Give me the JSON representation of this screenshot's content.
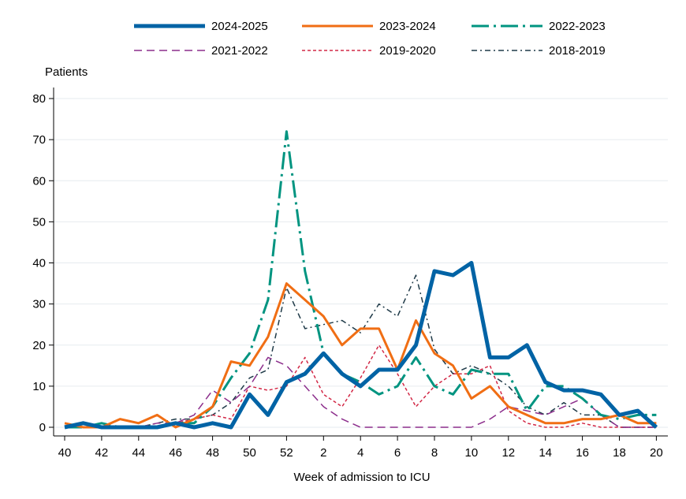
{
  "chart_data": {
    "type": "line",
    "title": "",
    "ylabel": "Patients",
    "xlabel": "Week of admission to ICU",
    "ylim": [
      0,
      80
    ],
    "yticks": [
      0,
      10,
      20,
      30,
      40,
      50,
      60,
      70,
      80
    ],
    "x": [
      40,
      41,
      42,
      43,
      44,
      45,
      46,
      47,
      48,
      49,
      50,
      51,
      52,
      1,
      2,
      3,
      4,
      5,
      6,
      7,
      8,
      9,
      10,
      11,
      12,
      13,
      14,
      15,
      16,
      17,
      18,
      19,
      20
    ],
    "xtick_labels": [
      "40",
      "42",
      "44",
      "46",
      "48",
      "50",
      "52",
      "2",
      "4",
      "6",
      "8",
      "10",
      "12",
      "14",
      "16",
      "18",
      "20"
    ],
    "grid": true,
    "legend_position": "top",
    "series": [
      {
        "name": "2024-2025",
        "color": "#0063a5",
        "style": "solid-thick",
        "values": [
          0,
          1,
          0,
          0,
          0,
          0,
          1,
          0,
          1,
          0,
          8,
          3,
          11,
          13,
          18,
          13,
          10,
          14,
          14,
          20,
          38,
          37,
          40,
          17,
          17,
          20,
          11,
          9,
          9,
          8,
          3,
          4,
          0
        ]
      },
      {
        "name": "2023-2024",
        "color": "#f06e14",
        "style": "solid",
        "values": [
          1,
          0,
          0,
          2,
          1,
          3,
          0,
          2,
          5,
          16,
          15,
          22,
          35,
          31,
          27,
          20,
          24,
          24,
          14,
          26,
          18,
          15,
          7,
          10,
          5,
          3,
          1,
          1,
          2,
          2,
          3,
          1,
          1
        ]
      },
      {
        "name": "2022-2023",
        "color": "#009480",
        "style": "dash-dot-long",
        "values": [
          0,
          0,
          1,
          0,
          0,
          0,
          1,
          1,
          5,
          12,
          18,
          31,
          72,
          38,
          18,
          13,
          11,
          8,
          10,
          17,
          10,
          8,
          14,
          13,
          13,
          4,
          10,
          10,
          7,
          3,
          2,
          3,
          3
        ]
      },
      {
        "name": "2021-2022",
        "color": "#8c2e8c",
        "style": "dashed",
        "values": [
          0,
          0,
          0,
          0,
          0,
          1,
          1,
          3,
          9,
          6,
          10,
          17,
          15,
          10,
          5,
          2,
          0,
          0,
          0,
          0,
          0,
          0,
          0,
          2,
          5,
          4,
          3,
          5,
          7,
          3,
          0,
          0,
          0
        ]
      },
      {
        "name": "2019-2020",
        "color": "#d22846",
        "style": "dotted",
        "values": [
          0,
          0,
          0,
          0,
          0,
          0,
          1,
          2,
          3,
          2,
          10,
          9,
          10,
          17,
          8,
          5,
          12,
          20,
          13,
          5,
          10,
          13,
          13,
          15,
          4,
          1,
          0,
          0,
          1,
          0,
          0,
          0,
          0
        ]
      },
      {
        "name": "2018-2019",
        "color": "#1f3a48",
        "style": "dash-dot",
        "values": [
          0,
          0,
          0,
          0,
          0,
          1,
          2,
          2,
          3,
          6,
          12,
          14,
          34,
          24,
          25,
          26,
          23,
          30,
          27,
          37,
          19,
          13,
          15,
          13,
          10,
          5,
          3,
          6,
          3,
          3,
          0,
          0,
          0
        ]
      }
    ]
  }
}
